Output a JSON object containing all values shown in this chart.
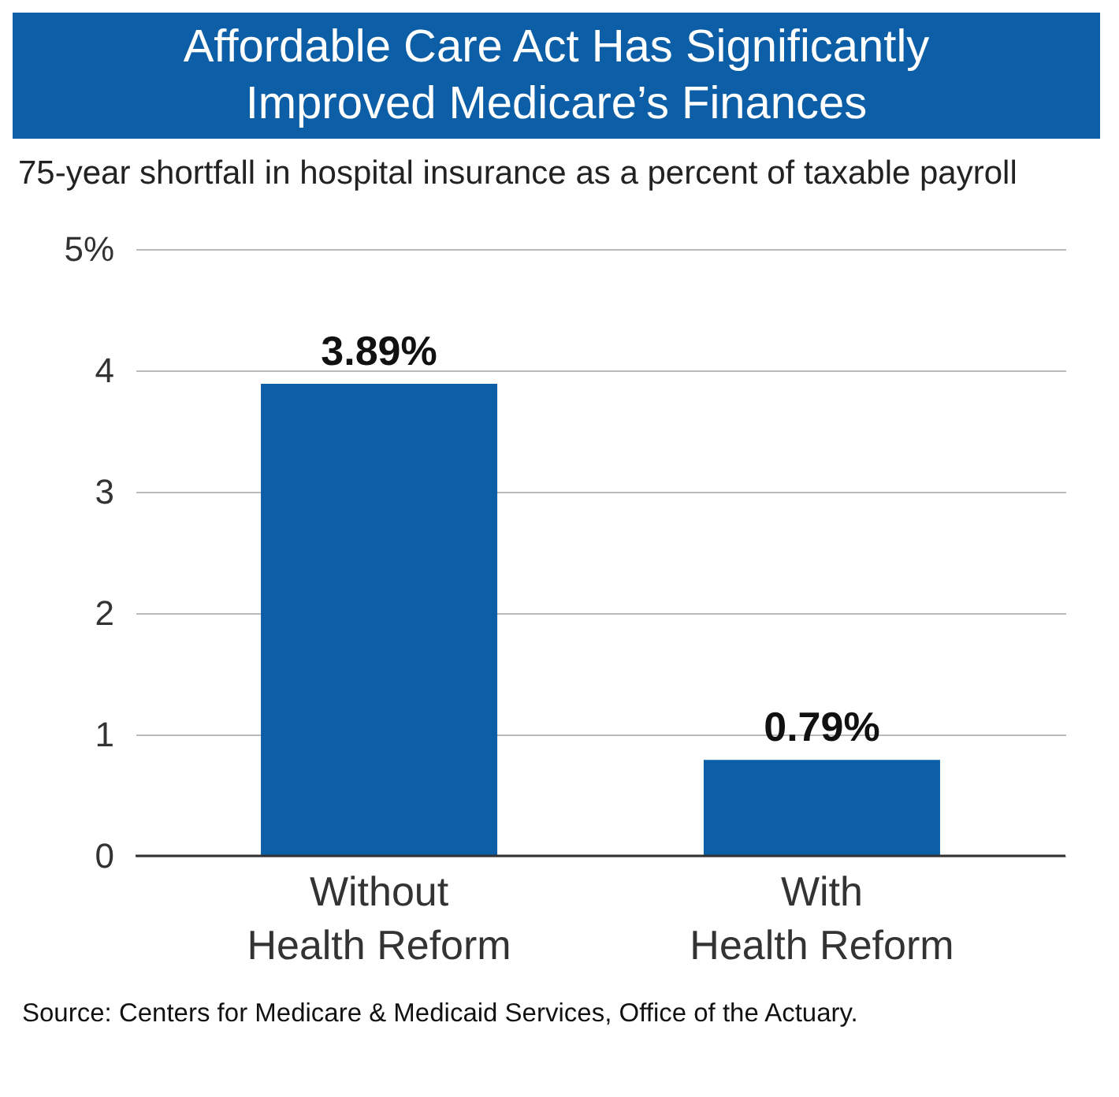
{
  "chart_data": {
    "type": "bar",
    "title": "Affordable Care Act Has Significantly Improved Medicare’s Finances",
    "ylabel": "75-year shortfall in hospital insurance as a percent of taxable payroll",
    "categories": [
      "Without Health Reform",
      "With Health Reform"
    ],
    "values": [
      3.89,
      0.79
    ],
    "value_labels": [
      "3.89%",
      "0.79%"
    ],
    "color": "#0c5fa6",
    "ylim": [
      0,
      5
    ],
    "yticks": [
      0,
      1,
      2,
      3,
      4,
      {
        "value": 5,
        "label": "5%"
      }
    ],
    "grid": "y",
    "annotations": [
      "Source: Centers for Medicare & Medicaid Services, Office of the Actuary."
    ]
  }
}
